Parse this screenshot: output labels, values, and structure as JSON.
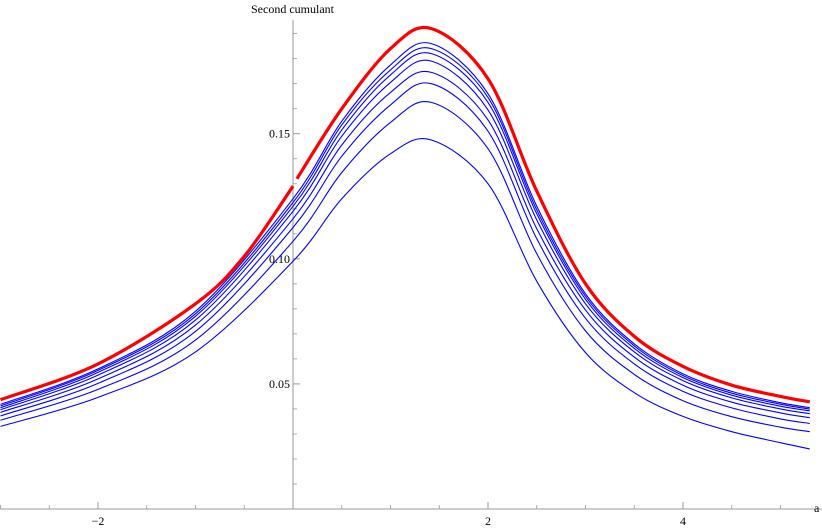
{
  "chart_data": {
    "type": "line",
    "title": "",
    "xlabel": "a",
    "ylabel": "Second cumulant",
    "xlim": [
      -3,
      5.3
    ],
    "ylim": [
      0.0,
      0.195
    ],
    "x_ticks": [
      -2,
      2,
      4
    ],
    "x_tick_labels": [
      "−2",
      "2",
      "4"
    ],
    "y_ticks": [
      0.05,
      0.1,
      0.15
    ],
    "y_tick_labels": [
      "0.05",
      "0.10",
      "0.15"
    ],
    "grid": false,
    "legend": "none",
    "colors": {
      "highlight": "#ff0000",
      "family": "#0000ff",
      "axis": "#999999"
    },
    "highlight_series": {
      "color": "#ff0000",
      "peak_x": 1.42,
      "points": [
        [
          -3.0,
          0.0437
        ],
        [
          -2.0,
          0.058
        ],
        [
          -1.0,
          0.082
        ],
        [
          -0.5,
          0.101
        ],
        [
          0.0,
          0.129
        ],
        [
          0.5,
          0.16
        ],
        [
          1.0,
          0.184
        ],
        [
          1.42,
          0.192
        ],
        [
          2.0,
          0.172
        ],
        [
          2.5,
          0.127
        ],
        [
          3.0,
          0.09
        ],
        [
          3.5,
          0.069
        ],
        [
          4.0,
          0.057
        ],
        [
          4.5,
          0.0495
        ],
        [
          5.0,
          0.045
        ],
        [
          5.3,
          0.0428
        ]
      ]
    },
    "series": [
      {
        "color": "#0000ff",
        "points": [
          [
            -3.0,
            0.0418
          ],
          [
            -2.0,
            0.056
          ],
          [
            -1.0,
            0.079
          ],
          [
            0.0,
            0.124
          ],
          [
            0.5,
            0.155
          ],
          [
            1.0,
            0.1775
          ],
          [
            1.42,
            0.186
          ],
          [
            2.0,
            0.166
          ],
          [
            2.5,
            0.121
          ],
          [
            3.0,
            0.086
          ],
          [
            3.5,
            0.066
          ],
          [
            4.0,
            0.054
          ],
          [
            4.5,
            0.047
          ],
          [
            5.0,
            0.0425
          ],
          [
            5.3,
            0.0405
          ]
        ]
      },
      {
        "color": "#0000ff",
        "points": [
          [
            -3.0,
            0.0412
          ],
          [
            -2.0,
            0.0554
          ],
          [
            -1.0,
            0.078
          ],
          [
            0.0,
            0.1225
          ],
          [
            0.5,
            0.1535
          ],
          [
            1.0,
            0.1755
          ],
          [
            1.42,
            0.184
          ],
          [
            2.0,
            0.1645
          ],
          [
            2.5,
            0.1195
          ],
          [
            3.0,
            0.085
          ],
          [
            3.5,
            0.0652
          ],
          [
            4.0,
            0.0533
          ],
          [
            4.5,
            0.0463
          ],
          [
            5.0,
            0.0419
          ],
          [
            5.3,
            0.0399
          ]
        ]
      },
      {
        "color": "#0000ff",
        "points": [
          [
            -3.0,
            0.0405
          ],
          [
            -2.0,
            0.0546
          ],
          [
            -1.0,
            0.077
          ],
          [
            0.0,
            0.121
          ],
          [
            0.5,
            0.1515
          ],
          [
            1.0,
            0.1735
          ],
          [
            1.42,
            0.182
          ],
          [
            2.0,
            0.1625
          ],
          [
            2.5,
            0.118
          ],
          [
            3.0,
            0.0838
          ],
          [
            3.5,
            0.0642
          ],
          [
            4.0,
            0.0525
          ],
          [
            4.5,
            0.0455
          ],
          [
            5.0,
            0.0411
          ],
          [
            5.3,
            0.0392
          ]
        ]
      },
      {
        "color": "#0000ff",
        "points": [
          [
            -3.0,
            0.0397
          ],
          [
            -2.0,
            0.0535
          ],
          [
            -1.0,
            0.0755
          ],
          [
            0.0,
            0.119
          ],
          [
            0.5,
            0.149
          ],
          [
            1.0,
            0.1705
          ],
          [
            1.42,
            0.179
          ],
          [
            2.0,
            0.1595
          ],
          [
            2.5,
            0.1155
          ],
          [
            3.0,
            0.082
          ],
          [
            3.5,
            0.0628
          ],
          [
            4.0,
            0.0513
          ],
          [
            4.5,
            0.0444
          ],
          [
            5.0,
            0.04
          ],
          [
            5.3,
            0.0381
          ]
        ]
      },
      {
        "color": "#0000ff",
        "points": [
          [
            -3.0,
            0.0386
          ],
          [
            -2.0,
            0.052
          ],
          [
            -1.0,
            0.0735
          ],
          [
            0.0,
            0.116
          ],
          [
            0.5,
            0.1455
          ],
          [
            1.0,
            0.1665
          ],
          [
            1.42,
            0.1745
          ],
          [
            2.0,
            0.1555
          ],
          [
            2.5,
            0.112
          ],
          [
            3.0,
            0.0795
          ],
          [
            3.5,
            0.0607
          ],
          [
            4.0,
            0.0495
          ],
          [
            4.5,
            0.0427
          ],
          [
            5.0,
            0.0384
          ],
          [
            5.3,
            0.0365
          ]
        ]
      },
      {
        "color": "#0000ff",
        "points": [
          [
            -3.0,
            0.0372
          ],
          [
            -2.0,
            0.0502
          ],
          [
            -1.0,
            0.071
          ],
          [
            0.0,
            0.1125
          ],
          [
            0.5,
            0.141
          ],
          [
            1.0,
            0.1615
          ],
          [
            1.42,
            0.17
          ],
          [
            2.0,
            0.151
          ],
          [
            2.5,
            0.108
          ],
          [
            3.0,
            0.0762
          ],
          [
            3.5,
            0.058
          ],
          [
            4.0,
            0.047
          ],
          [
            4.5,
            0.0404
          ],
          [
            5.0,
            0.036
          ],
          [
            5.3,
            0.0342
          ]
        ]
      },
      {
        "color": "#0000ff",
        "points": [
          [
            -3.0,
            0.0355
          ],
          [
            -2.0,
            0.0478
          ],
          [
            -1.0,
            0.0675
          ],
          [
            0.0,
            0.107
          ],
          [
            0.5,
            0.1345
          ],
          [
            1.0,
            0.1545
          ],
          [
            1.42,
            0.1625
          ],
          [
            2.0,
            0.144
          ],
          [
            2.5,
            0.102
          ],
          [
            3.0,
            0.0712
          ],
          [
            3.5,
            0.0538
          ],
          [
            4.0,
            0.0433
          ],
          [
            4.5,
            0.0369
          ],
          [
            5.0,
            0.0327
          ],
          [
            5.3,
            0.0309
          ]
        ]
      },
      {
        "color": "#0000ff",
        "points": [
          [
            -3.0,
            0.033
          ],
          [
            -2.0,
            0.0446
          ],
          [
            -1.0,
            0.0628
          ],
          [
            0.0,
            0.099
          ],
          [
            0.5,
            0.124
          ],
          [
            1.0,
            0.142
          ],
          [
            1.42,
            0.1475
          ],
          [
            2.0,
            0.13
          ],
          [
            2.5,
            0.091
          ],
          [
            3.0,
            0.0625
          ],
          [
            3.5,
            0.0465
          ],
          [
            4.0,
            0.037
          ],
          [
            4.5,
            0.0309
          ],
          [
            5.0,
            0.0265
          ],
          [
            5.3,
            0.024
          ]
        ]
      }
    ]
  }
}
